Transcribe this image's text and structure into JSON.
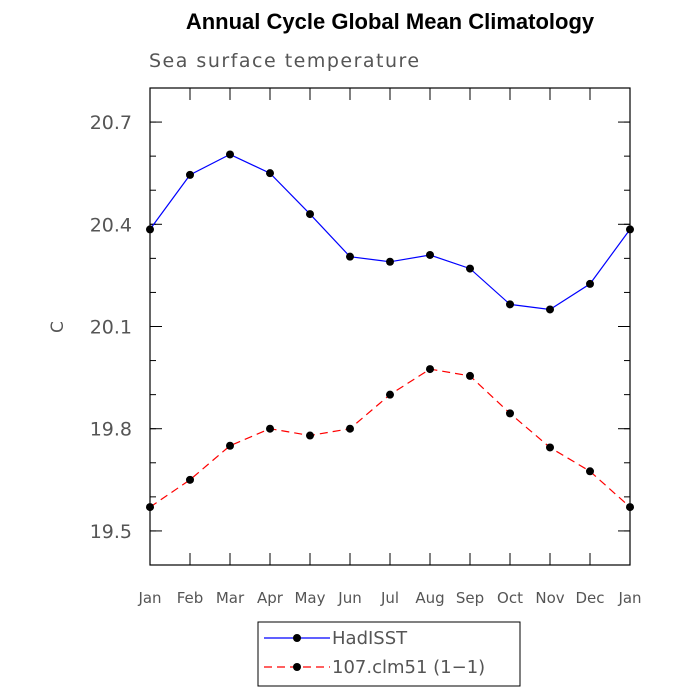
{
  "chart_data": {
    "type": "line",
    "title": "Annual Cycle Global Mean Climatology",
    "subtitle": "Sea surface temperature",
    "xlabel": "",
    "ylabel": "C",
    "categories": [
      "Jan",
      "Feb",
      "Mar",
      "Apr",
      "May",
      "Jun",
      "Jul",
      "Aug",
      "Sep",
      "Oct",
      "Nov",
      "Dec",
      "Jan"
    ],
    "ylim": [
      19.4,
      20.8
    ],
    "yticks": [
      19.5,
      19.8,
      20.1,
      20.4,
      20.7
    ],
    "ytick_labels": [
      "19.5",
      "19.8",
      "20.1",
      "20.4",
      "20.7"
    ],
    "minor_ytick_step": 0.1,
    "grid": false,
    "legend_position": "bottom-center",
    "series": [
      {
        "name": "HadISST",
        "color": "#0000ff",
        "dash": "solid",
        "values": [
          20.385,
          20.545,
          20.605,
          20.55,
          20.43,
          20.305,
          20.29,
          20.31,
          20.27,
          20.165,
          20.15,
          20.225,
          20.385
        ]
      },
      {
        "name": "107.clm51 (1−1)",
        "color": "#ff0000",
        "dash": "dashed",
        "values": [
          19.57,
          19.65,
          19.75,
          19.8,
          19.78,
          19.8,
          19.9,
          19.975,
          19.955,
          19.845,
          19.745,
          19.675,
          19.57
        ]
      }
    ]
  }
}
